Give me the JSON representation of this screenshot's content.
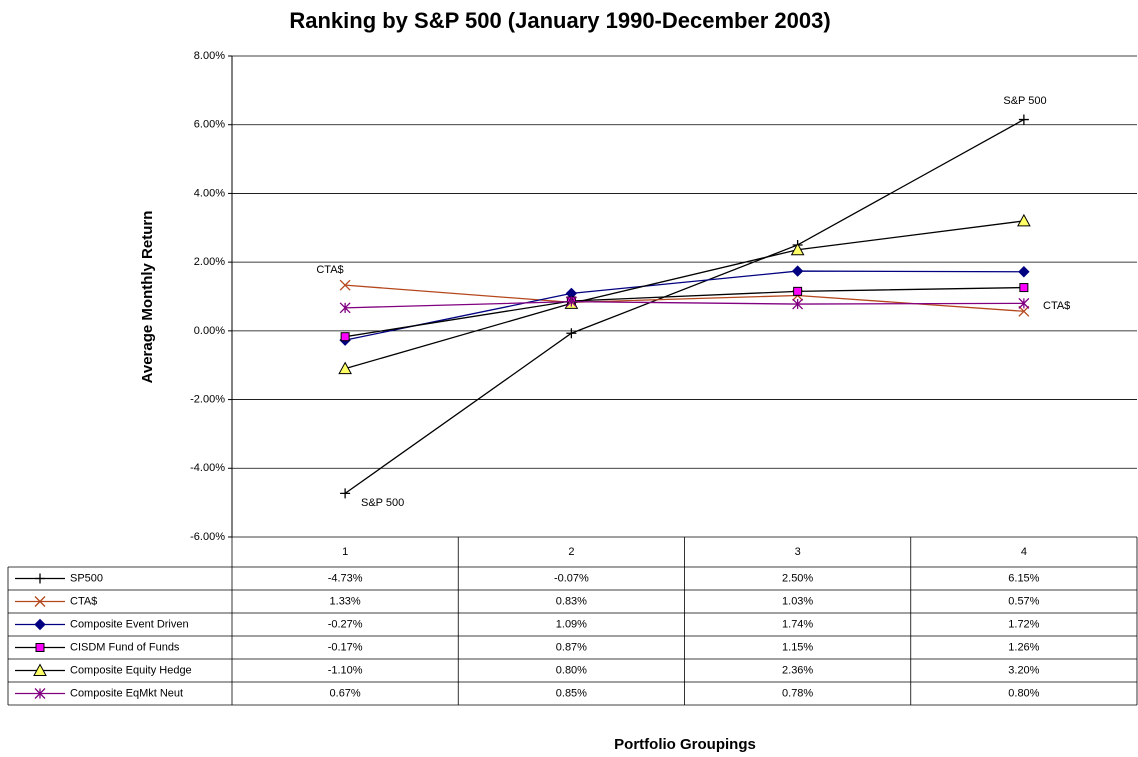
{
  "chart_data": {
    "type": "line",
    "title": "Ranking by S&P 500 (January 1990-December 2003)",
    "y_label": "Average Monthly Return",
    "x_label": "Portfolio Groupings",
    "categories": [
      "1",
      "2",
      "3",
      "4"
    ],
    "ylim": [
      -6,
      8
    ],
    "yticks": [
      {
        "value": -6,
        "label": "-6.00%"
      },
      {
        "value": -4,
        "label": "-4.00%"
      },
      {
        "value": -2,
        "label": "-2.00%"
      },
      {
        "value": 0,
        "label": "0.00%"
      },
      {
        "value": 2,
        "label": "2.00%"
      },
      {
        "value": 4,
        "label": "4.00%"
      },
      {
        "value": 6,
        "label": "6.00%"
      },
      {
        "value": 8,
        "label": "8.00%"
      }
    ],
    "grid": true,
    "annotations": [
      "S&P 500",
      "S&P 500",
      "CTA$",
      "CTA$"
    ],
    "series": [
      {
        "name": "SP500",
        "color": "#000000",
        "marker": "plus",
        "marker_color": "#000000",
        "values": [
          -4.73,
          -0.07,
          2.5,
          6.15
        ],
        "value_labels": [
          "-4.73%",
          "-0.07%",
          "2.50%",
          "6.15%"
        ]
      },
      {
        "name": "CTA$",
        "color": "#b5471d",
        "marker": "x",
        "marker_color": "#b5471d",
        "values": [
          1.33,
          0.83,
          1.03,
          0.57
        ],
        "value_labels": [
          "1.33%",
          "0.83%",
          "1.03%",
          "0.57%"
        ]
      },
      {
        "name": "Composite Event Driven",
        "color": "#000080",
        "marker": "diamond",
        "marker_color": "#000080",
        "values": [
          -0.27,
          1.09,
          1.74,
          1.72
        ],
        "value_labels": [
          "-0.27%",
          "1.09%",
          "1.74%",
          "1.72%"
        ]
      },
      {
        "name": "CISDM Fund of Funds",
        "color": "#000000",
        "marker": "square",
        "marker_color": "#ff00ff",
        "values": [
          -0.17,
          0.87,
          1.15,
          1.26
        ],
        "value_labels": [
          "-0.17%",
          "0.87%",
          "1.15%",
          "1.26%"
        ]
      },
      {
        "name": "Composite Equity Hedge",
        "color": "#000000",
        "marker": "triangle",
        "marker_color": "#ffff66",
        "values": [
          -1.1,
          0.8,
          2.36,
          3.2
        ],
        "value_labels": [
          "-1.10%",
          "0.80%",
          "2.36%",
          "3.20%"
        ]
      },
      {
        "name": "Composite EqMkt Neut",
        "color": "#800080",
        "marker": "star",
        "marker_color": "#800080",
        "values": [
          0.67,
          0.85,
          0.78,
          0.8
        ],
        "value_labels": [
          "0.67%",
          "0.85%",
          "0.78%",
          "0.80%"
        ]
      }
    ]
  }
}
